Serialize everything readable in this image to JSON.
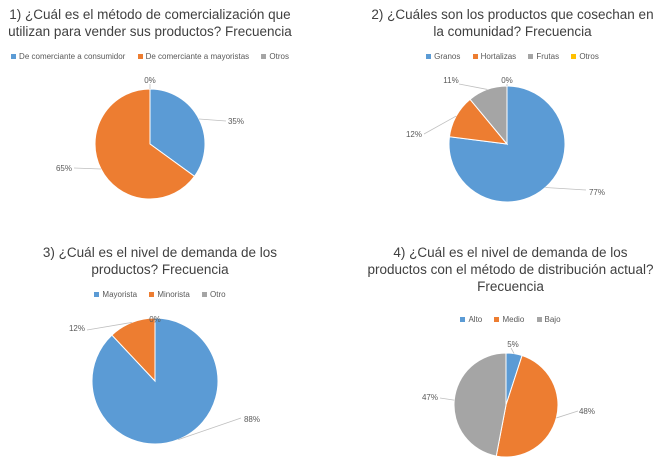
{
  "chart_data": [
    {
      "type": "pie",
      "title_lines": [
        "1)      ¿Cuál es el método de comercialización que",
        "utilizan para vender sus productos?  Frecuencia"
      ],
      "categories": [
        "De comerciante a consumidor",
        "De comerciante a mayoristas",
        "Otros"
      ],
      "values": [
        35,
        65,
        0
      ],
      "labels": [
        "35%",
        "65%",
        "0%"
      ],
      "colors": [
        "#5b9bd5",
        "#ed7d31",
        "#a5a5a5"
      ],
      "legend": "top"
    },
    {
      "type": "pie",
      "title_lines": [
        "2)       ¿Cuáles son los productos que cosechan en",
        "la comunidad?  Frecuencia"
      ],
      "categories": [
        "Granos",
        "Hortalizas",
        "Frutas",
        "Otros"
      ],
      "values": [
        77,
        12,
        11,
        0
      ],
      "labels": [
        "77%",
        "12%",
        "11%",
        "0%"
      ],
      "colors": [
        "#5b9bd5",
        "#ed7d31",
        "#a5a5a5",
        "#ffc000"
      ],
      "legend": "top"
    },
    {
      "type": "pie",
      "title_lines": [
        "3)      ¿Cuál es el nivel de demanda de los",
        "productos? Frecuencia"
      ],
      "categories": [
        "Mayorista",
        "Minorista",
        "Otro"
      ],
      "values": [
        88,
        12,
        0
      ],
      "labels": [
        "88%",
        "12%",
        "0%"
      ],
      "colors": [
        "#5b9bd5",
        "#ed7d31",
        "#a5a5a5"
      ],
      "legend": "top"
    },
    {
      "type": "pie",
      "title_lines": [
        "4)      ¿Cuál es el nivel de demanda de los",
        "productos con el método de distribución actual?",
        "Frecuencia"
      ],
      "categories": [
        "Alto",
        "Medio",
        "Bajo"
      ],
      "values": [
        5,
        48,
        47
      ],
      "labels": [
        "5%",
        "48%",
        "47%"
      ],
      "colors": [
        "#5b9bd5",
        "#ed7d31",
        "#a5a5a5"
      ],
      "legend": "top"
    }
  ]
}
